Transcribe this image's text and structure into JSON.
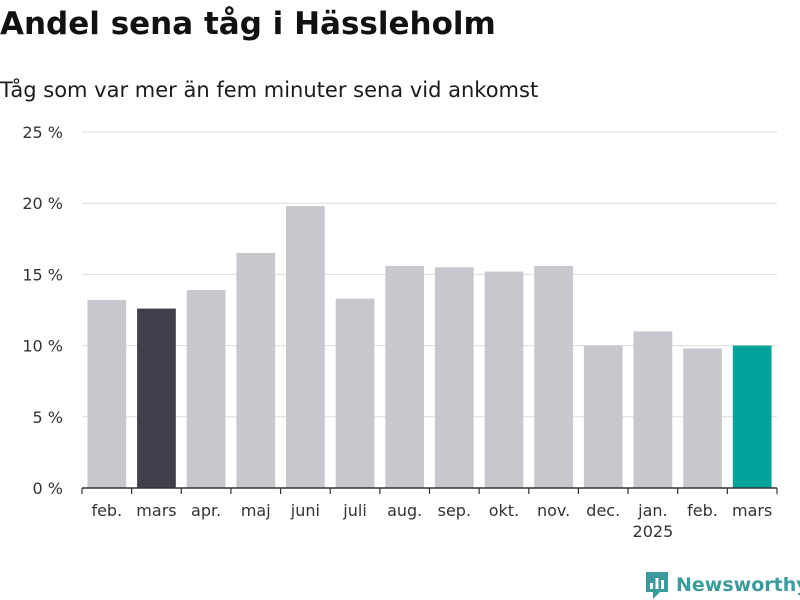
{
  "title": "Andel sena tåg i Hässleholm",
  "subtitle": "Tåg som var mer än fem minuter sena vid ankomst",
  "brand": {
    "name": "Newsworthy",
    "icon": "newsworthy-logo-icon",
    "color": "#3a9a9c"
  },
  "chart_data": {
    "type": "bar",
    "title": "Andel sena tåg i Hässleholm",
    "subtitle": "Tåg som var mer än fem minuter sena vid ankomst",
    "categories": [
      "feb.",
      "mars",
      "apr.",
      "maj",
      "juni",
      "juli",
      "aug.",
      "sep.",
      "okt.",
      "nov.",
      "dec.",
      "jan.",
      "feb.",
      "mars"
    ],
    "year_labels": [
      "",
      "",
      "",
      "",
      "",
      "",
      "",
      "",
      "",
      "",
      "",
      "2025",
      "",
      ""
    ],
    "values": [
      13.2,
      12.6,
      13.9,
      16.5,
      19.8,
      13.3,
      15.6,
      15.5,
      15.2,
      15.6,
      10.0,
      11.0,
      9.8,
      10.0
    ],
    "bar_colors": [
      "#c8c7cd",
      "#403f4c",
      "#c8c7cd",
      "#c8c7cd",
      "#c8c7cd",
      "#c8c7cd",
      "#c8c7cd",
      "#c8c7cd",
      "#c8c7cd",
      "#c8c7cd",
      "#c8c7cd",
      "#c8c7cd",
      "#c8c7cd",
      "#00a39a"
    ],
    "ylim": [
      0,
      25
    ],
    "yticks": [
      0,
      5,
      10,
      15,
      20,
      25
    ],
    "ytick_labels": [
      "0 %",
      "5 %",
      "10 %",
      "15 %",
      "20 %",
      "25 %"
    ],
    "grid": true,
    "xlabel": "",
    "ylabel": ""
  }
}
